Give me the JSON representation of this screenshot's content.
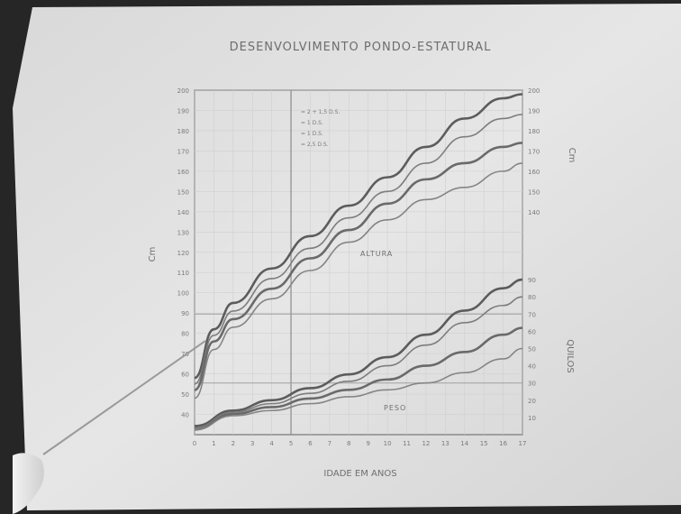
{
  "chart_data": {
    "type": "line",
    "title": "DESENVOLVIMENTO PONDO-ESTATURAL",
    "xlabel": "IDADE EM ANOS",
    "ylabel_left": "Cm",
    "ylabel_right_top": "Cm",
    "ylabel_right_bottom": "QUILOS",
    "x_ticks": [
      "0",
      "1",
      "2",
      "3",
      "4",
      "5",
      "6",
      "7",
      "8",
      "9",
      "10",
      "11",
      "12",
      "13",
      "14",
      "15",
      "16",
      "17"
    ],
    "y_left_ticks": [
      "40",
      "50",
      "60",
      "70",
      "80",
      "90",
      "100",
      "110",
      "120",
      "130",
      "140",
      "150",
      "160",
      "170",
      "180",
      "190",
      "200"
    ],
    "y_right_top_ticks": [
      "140",
      "150",
      "160",
      "170",
      "180",
      "190",
      "200"
    ],
    "y_right_bottom_ticks": [
      "10",
      "20",
      "30",
      "40",
      "50",
      "60",
      "70",
      "80",
      "90"
    ],
    "annotations": {
      "height": "ALTURA",
      "weight": "PESO"
    },
    "legend": [
      "= 2 + 1,5 D.S.",
      "= 1 D.S.",
      "= 1 D.S.",
      "= 2,5 D.S."
    ],
    "xlim": [
      0,
      17
    ],
    "ylim_left": [
      30,
      200
    ],
    "ylim_right_weight": [
      0,
      100
    ],
    "series_height": [
      {
        "x": [
          0,
          1,
          2,
          4,
          6,
          8,
          10,
          12,
          14,
          16,
          17
        ],
        "values": [
          58,
          82,
          95,
          112,
          128,
          143,
          157,
          172,
          186,
          196,
          198
        ]
      },
      {
        "x": [
          0,
          1,
          2,
          4,
          6,
          8,
          10,
          12,
          14,
          16,
          17
        ],
        "values": [
          55,
          79,
          91,
          107,
          122,
          137,
          150,
          164,
          177,
          186,
          188
        ]
      },
      {
        "x": [
          0,
          1,
          2,
          4,
          6,
          8,
          10,
          12,
          14,
          16,
          17
        ],
        "values": [
          52,
          76,
          87,
          102,
          117,
          131,
          144,
          156,
          164,
          172,
          174
        ]
      },
      {
        "x": [
          0,
          1,
          2,
          4,
          6,
          8,
          10,
          12,
          14,
          16,
          17
        ],
        "values": [
          48,
          72,
          83,
          97,
          111,
          125,
          136,
          146,
          152,
          160,
          164
        ]
      }
    ],
    "series_weight": [
      {
        "x": [
          0,
          2,
          4,
          6,
          8,
          10,
          12,
          14,
          16,
          17
        ],
        "values": [
          5,
          14,
          20,
          27,
          35,
          45,
          58,
          72,
          85,
          90
        ]
      },
      {
        "x": [
          0,
          2,
          4,
          6,
          8,
          10,
          12,
          14,
          16,
          17
        ],
        "values": [
          4,
          13,
          18,
          24,
          31,
          40,
          52,
          65,
          75,
          80
        ]
      },
      {
        "x": [
          0,
          2,
          4,
          6,
          8,
          10,
          12,
          14,
          16,
          17
        ],
        "values": [
          3,
          12,
          16,
          21,
          26,
          32,
          40,
          48,
          58,
          62
        ]
      },
      {
        "x": [
          0,
          2,
          4,
          6,
          8,
          10,
          12,
          14,
          16,
          17
        ],
        "values": [
          3,
          11,
          14,
          18,
          22,
          26,
          30,
          36,
          44,
          50
        ]
      }
    ],
    "reference_lines": {
      "vertical_age": 5,
      "horizontal_weight_top": 70,
      "horizontal_weight_bottom": 30
    },
    "grid": true
  }
}
